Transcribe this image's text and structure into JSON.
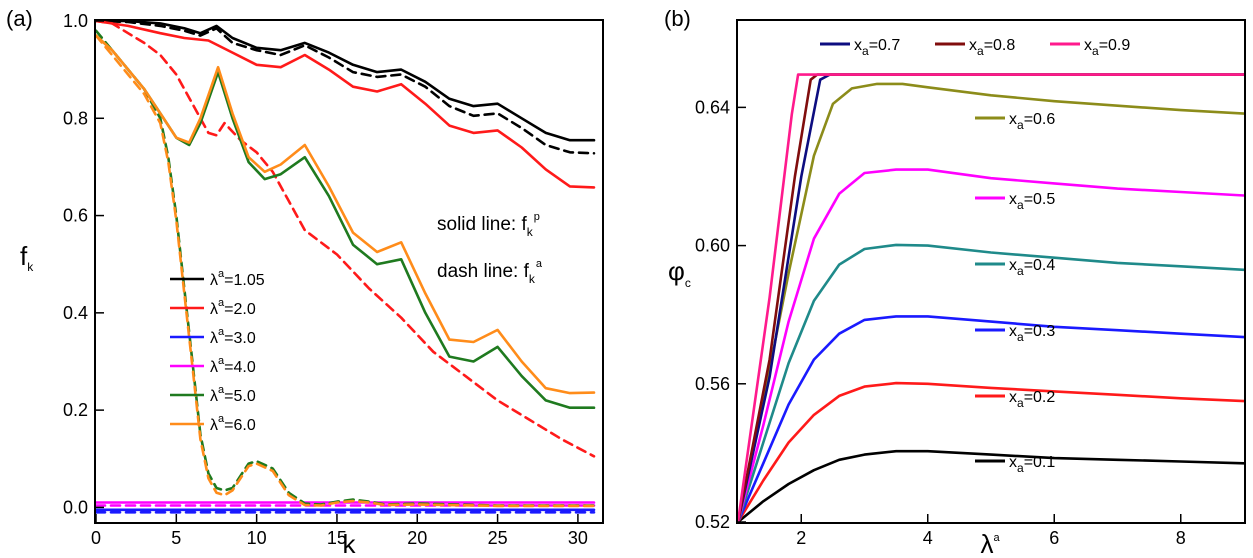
{
  "chart_data": [
    {
      "type": "line",
      "panel_label": "(a)",
      "xlabel": "k",
      "ylabel": "f",
      "ylabel_sub": "k",
      "xlim": [
        0,
        31.5
      ],
      "ylim": [
        -0.03,
        1.0
      ],
      "xticks": [
        0,
        5,
        10,
        15,
        20,
        25,
        30
      ],
      "yticks": [
        0.0,
        0.2,
        0.4,
        0.6,
        0.8,
        1.0
      ],
      "xtick_labels": [
        "0",
        "5",
        "10",
        "15",
        "20",
        "25",
        "30"
      ],
      "ytick_labels": [
        "0.0",
        "0.2",
        "0.4",
        "0.6",
        "0.8",
        "1.0"
      ],
      "legend_position": "lower-left",
      "annotations": [
        {
          "text": "solid line: f",
          "sub": "k",
          "sup": "p"
        },
        {
          "text": "dash line: f",
          "sub": "k",
          "sup": "a"
        }
      ],
      "series": [
        {
          "name": "λ",
          "name_sup": "a",
          "name_rest": "=1.05",
          "color": "#000000",
          "style": "solid",
          "x": [
            0,
            2,
            4,
            5.5,
            6.5,
            7.5,
            8.5,
            10,
            11.5,
            13,
            14.5,
            16,
            17.5,
            19,
            20.5,
            22,
            23.5,
            25,
            26.5,
            28,
            29.5,
            31
          ],
          "y": [
            1.0,
            1.0,
            0.995,
            0.985,
            0.975,
            0.99,
            0.965,
            0.945,
            0.94,
            0.955,
            0.935,
            0.91,
            0.895,
            0.9,
            0.875,
            0.84,
            0.825,
            0.83,
            0.8,
            0.77,
            0.755,
            0.755
          ]
        },
        {
          "name": "λ",
          "name_sup": "a",
          "name_rest": "=1.05 dash",
          "color": "#000000",
          "style": "dash",
          "legend": false,
          "x": [
            0,
            2,
            4,
            5.5,
            6.5,
            7.5,
            8.5,
            10,
            11.5,
            13,
            14.5,
            16,
            17.5,
            19,
            20.5,
            22,
            23.5,
            25,
            26.5,
            28,
            29.5,
            31
          ],
          "y": [
            1.0,
            0.998,
            0.99,
            0.98,
            0.97,
            0.985,
            0.955,
            0.94,
            0.93,
            0.95,
            0.925,
            0.895,
            0.885,
            0.89,
            0.865,
            0.825,
            0.805,
            0.81,
            0.78,
            0.745,
            0.73,
            0.728
          ]
        },
        {
          "name": "λ",
          "name_sup": "a",
          "name_rest": "=2.0",
          "color": "#ff1a1a",
          "style": "solid",
          "x": [
            0,
            2,
            4,
            5.5,
            7,
            8.5,
            10,
            11.5,
            13,
            14.5,
            16,
            17.5,
            19,
            20.5,
            22,
            23.5,
            25,
            26.5,
            28,
            29.5,
            31
          ],
          "y": [
            1.0,
            0.99,
            0.975,
            0.965,
            0.96,
            0.935,
            0.91,
            0.905,
            0.93,
            0.9,
            0.865,
            0.855,
            0.87,
            0.83,
            0.785,
            0.77,
            0.775,
            0.74,
            0.695,
            0.66,
            0.658
          ]
        },
        {
          "name": "λ",
          "name_sup": "a",
          "name_rest": "=2.0 dash",
          "color": "#ff1a1a",
          "style": "dash",
          "legend": false,
          "x": [
            0,
            1,
            2,
            3,
            4,
            5,
            6,
            7,
            7.5,
            8,
            9,
            10,
            11,
            12,
            13,
            14,
            15,
            17,
            19,
            21,
            23,
            25,
            27,
            29,
            31
          ],
          "y": [
            1.0,
            0.995,
            0.975,
            0.955,
            0.93,
            0.89,
            0.83,
            0.77,
            0.765,
            0.79,
            0.755,
            0.73,
            0.69,
            0.63,
            0.57,
            0.545,
            0.52,
            0.45,
            0.39,
            0.32,
            0.27,
            0.22,
            0.18,
            0.14,
            0.105
          ]
        },
        {
          "name": "λ",
          "name_sup": "a",
          "name_rest": "=3.0",
          "color": "#1a1aff",
          "style": "solid",
          "x": [
            0,
            31
          ],
          "y": [
            -0.005,
            -0.005
          ]
        },
        {
          "name": "λ",
          "name_sup": "a",
          "name_rest": "=3.0 dash",
          "color": "#1a1aff",
          "style": "dash",
          "legend": false,
          "x": [
            0,
            31
          ],
          "y": [
            -0.01,
            -0.01
          ]
        },
        {
          "name": "λ",
          "name_sup": "a",
          "name_rest": "=4.0",
          "color": "#ff00ff",
          "style": "solid",
          "x": [
            0,
            31
          ],
          "y": [
            0.01,
            0.01
          ]
        },
        {
          "name": "λ",
          "name_sup": "a",
          "name_rest": "=4.0 dash",
          "color": "#ff00ff",
          "style": "dash",
          "legend": false,
          "x": [
            0,
            31
          ],
          "y": [
            0.004,
            0.004
          ]
        },
        {
          "name": "λ",
          "name_sup": "a",
          "name_rest": "=5.0",
          "color": "#1f7a1f",
          "style": "solid",
          "x": [
            0,
            1,
            2,
            3,
            4,
            5,
            5.8,
            6.5,
            7.6,
            8.5,
            9.5,
            10.5,
            11.5,
            13,
            14.5,
            16,
            17.5,
            19,
            20.5,
            22,
            23.5,
            25,
            26.5,
            28,
            29.5,
            31
          ],
          "y": [
            0.97,
            0.94,
            0.9,
            0.86,
            0.81,
            0.76,
            0.745,
            0.79,
            0.895,
            0.8,
            0.71,
            0.675,
            0.685,
            0.72,
            0.64,
            0.54,
            0.5,
            0.51,
            0.4,
            0.31,
            0.3,
            0.33,
            0.27,
            0.22,
            0.205,
            0.205
          ]
        },
        {
          "name": "λ",
          "name_sup": "a",
          "name_rest": "=5.0 dash",
          "color": "#1f7a1f",
          "style": "dash",
          "legend": false,
          "x": [
            0,
            1,
            2,
            3,
            4,
            4.5,
            5,
            5.5,
            6,
            6.5,
            7,
            7.5,
            8,
            8.5,
            9.5,
            10,
            11,
            12,
            13,
            14,
            15,
            16,
            17,
            18,
            20,
            25,
            31
          ],
          "y": [
            0.98,
            0.94,
            0.9,
            0.86,
            0.8,
            0.72,
            0.6,
            0.45,
            0.3,
            0.15,
            0.07,
            0.04,
            0.035,
            0.04,
            0.09,
            0.095,
            0.08,
            0.03,
            0.008,
            0.006,
            0.012,
            0.016,
            0.012,
            0.006,
            0.008,
            0.004,
            0.004
          ]
        },
        {
          "name": "λ",
          "name_sup": "a",
          "name_rest": "=6.0",
          "color": "#ff8c1a",
          "style": "solid",
          "x": [
            0,
            1,
            2,
            3,
            4,
            5,
            5.8,
            6.5,
            7.6,
            8.5,
            9.5,
            10.5,
            11.5,
            13,
            14.5,
            16,
            17.5,
            19,
            20.5,
            22,
            23.5,
            25,
            26.5,
            28,
            29.5,
            31
          ],
          "y": [
            0.97,
            0.94,
            0.9,
            0.86,
            0.81,
            0.76,
            0.75,
            0.8,
            0.905,
            0.81,
            0.72,
            0.69,
            0.705,
            0.745,
            0.66,
            0.565,
            0.525,
            0.545,
            0.44,
            0.345,
            0.34,
            0.365,
            0.3,
            0.245,
            0.235,
            0.236
          ]
        },
        {
          "name": "λ",
          "name_sup": "a",
          "name_rest": "=6.0 dash",
          "color": "#ff8c1a",
          "style": "dash",
          "legend": false,
          "x": [
            0,
            1,
            2,
            3,
            4,
            4.5,
            5,
            5.5,
            6,
            6.5,
            7,
            7.5,
            8,
            8.5,
            9.5,
            10,
            11,
            12,
            13,
            14,
            15,
            16,
            17,
            18,
            20,
            25,
            31
          ],
          "y": [
            0.97,
            0.93,
            0.89,
            0.85,
            0.79,
            0.71,
            0.59,
            0.44,
            0.29,
            0.14,
            0.06,
            0.03,
            0.025,
            0.035,
            0.085,
            0.09,
            0.075,
            0.025,
            0.005,
            0.004,
            0.01,
            0.013,
            0.01,
            0.005,
            0.006,
            0.003,
            0.003
          ]
        }
      ]
    },
    {
      "type": "line",
      "panel_label": "(b)",
      "xlabel": "λ",
      "xlabel_sup": "a",
      "ylabel": "φ",
      "ylabel_sub": "c",
      "xlim": [
        1.0,
        9.0
      ],
      "ylim": [
        0.52,
        0.665
      ],
      "xticks": [
        2,
        4,
        6,
        8
      ],
      "yticks": [
        0.52,
        0.56,
        0.6,
        0.64
      ],
      "xtick_labels": [
        "2",
        "4",
        "6",
        "8"
      ],
      "ytick_labels": [
        "0.52",
        "0.56",
        "0.60",
        "0.64"
      ],
      "series": [
        {
          "label_main": "x",
          "label_sub": "a",
          "label_rest": "=0.1",
          "color": "#000000",
          "x": [
            1.0,
            1.4,
            1.8,
            2.2,
            2.6,
            3.0,
            3.5,
            4.0,
            5.0,
            6.0,
            7.0,
            8.0,
            9.0
          ],
          "y": [
            0.52,
            0.526,
            0.531,
            0.535,
            0.538,
            0.5395,
            0.5405,
            0.5405,
            0.5395,
            0.5385,
            0.538,
            0.5375,
            0.537
          ]
        },
        {
          "label_main": "x",
          "label_sub": "a",
          "label_rest": "=0.2",
          "color": "#ff1a1a",
          "x": [
            1.0,
            1.4,
            1.8,
            2.2,
            2.6,
            3.0,
            3.5,
            4.0,
            5.0,
            6.0,
            7.0,
            8.0,
            9.0
          ],
          "y": [
            0.52,
            0.532,
            0.543,
            0.551,
            0.5565,
            0.5592,
            0.5602,
            0.56,
            0.5588,
            0.5578,
            0.5568,
            0.5558,
            0.555
          ]
        },
        {
          "label_main": "x",
          "label_sub": "a",
          "label_rest": "=0.3",
          "color": "#1a1aff",
          "x": [
            1.0,
            1.4,
            1.8,
            2.2,
            2.6,
            3.0,
            3.5,
            4.0,
            5.0,
            6.0,
            7.0,
            8.0,
            9.0
          ],
          "y": [
            0.52,
            0.537,
            0.554,
            0.567,
            0.5745,
            0.5785,
            0.5795,
            0.5795,
            0.578,
            0.5765,
            0.5755,
            0.5745,
            0.5735
          ]
        },
        {
          "label_main": "x",
          "label_sub": "a",
          "label_rest": "=0.4",
          "color": "#1f8a8a",
          "x": [
            1.0,
            1.4,
            1.8,
            2.2,
            2.6,
            3.0,
            3.5,
            4.0,
            5.0,
            6.0,
            7.0,
            8.0,
            9.0
          ],
          "y": [
            0.52,
            0.543,
            0.566,
            0.584,
            0.5945,
            0.599,
            0.6002,
            0.6,
            0.598,
            0.5965,
            0.595,
            0.594,
            0.593
          ]
        },
        {
          "label_main": "x",
          "label_sub": "a",
          "label_rest": "=0.5",
          "color": "#ff00ff",
          "x": [
            1.0,
            1.4,
            1.8,
            2.2,
            2.6,
            3.0,
            3.5,
            4.0,
            5.0,
            6.0,
            7.0,
            8.0,
            9.0
          ],
          "y": [
            0.52,
            0.548,
            0.578,
            0.602,
            0.615,
            0.621,
            0.622,
            0.622,
            0.6195,
            0.618,
            0.6165,
            0.6155,
            0.6145
          ]
        },
        {
          "label_main": "x",
          "label_sub": "a",
          "label_rest": "=0.6",
          "color": "#8c8c1a",
          "x": [
            1.0,
            1.4,
            1.8,
            2.2,
            2.5,
            2.8,
            3.2,
            3.6,
            4.0,
            5.0,
            6.0,
            7.0,
            8.0,
            9.0
          ],
          "y": [
            0.52,
            0.555,
            0.592,
            0.626,
            0.641,
            0.6455,
            0.6468,
            0.6468,
            0.6458,
            0.6435,
            0.6418,
            0.6405,
            0.6392,
            0.6382
          ]
        },
        {
          "label_main": "x",
          "label_sub": "a",
          "label_rest": "=0.7",
          "color": "#0d0d80",
          "x": [
            1.0,
            1.5,
            2.0,
            2.3,
            2.45,
            9.0
          ],
          "y": [
            0.52,
            0.562,
            0.62,
            0.648,
            0.6495,
            0.6495
          ]
        },
        {
          "label_main": "x",
          "label_sub": "a",
          "label_rest": "=0.8",
          "color": "#800d0d",
          "x": [
            1.0,
            1.5,
            1.9,
            2.15,
            2.25,
            9.0
          ],
          "y": [
            0.52,
            0.567,
            0.62,
            0.648,
            0.6495,
            0.6495
          ]
        },
        {
          "label_main": "x",
          "label_sub": "a",
          "label_rest": "=0.9",
          "color": "#ff1a8c",
          "x": [
            1.0,
            1.5,
            1.85,
            1.95,
            9.0
          ],
          "y": [
            0.52,
            0.585,
            0.638,
            0.6495,
            0.6495
          ]
        }
      ]
    }
  ]
}
